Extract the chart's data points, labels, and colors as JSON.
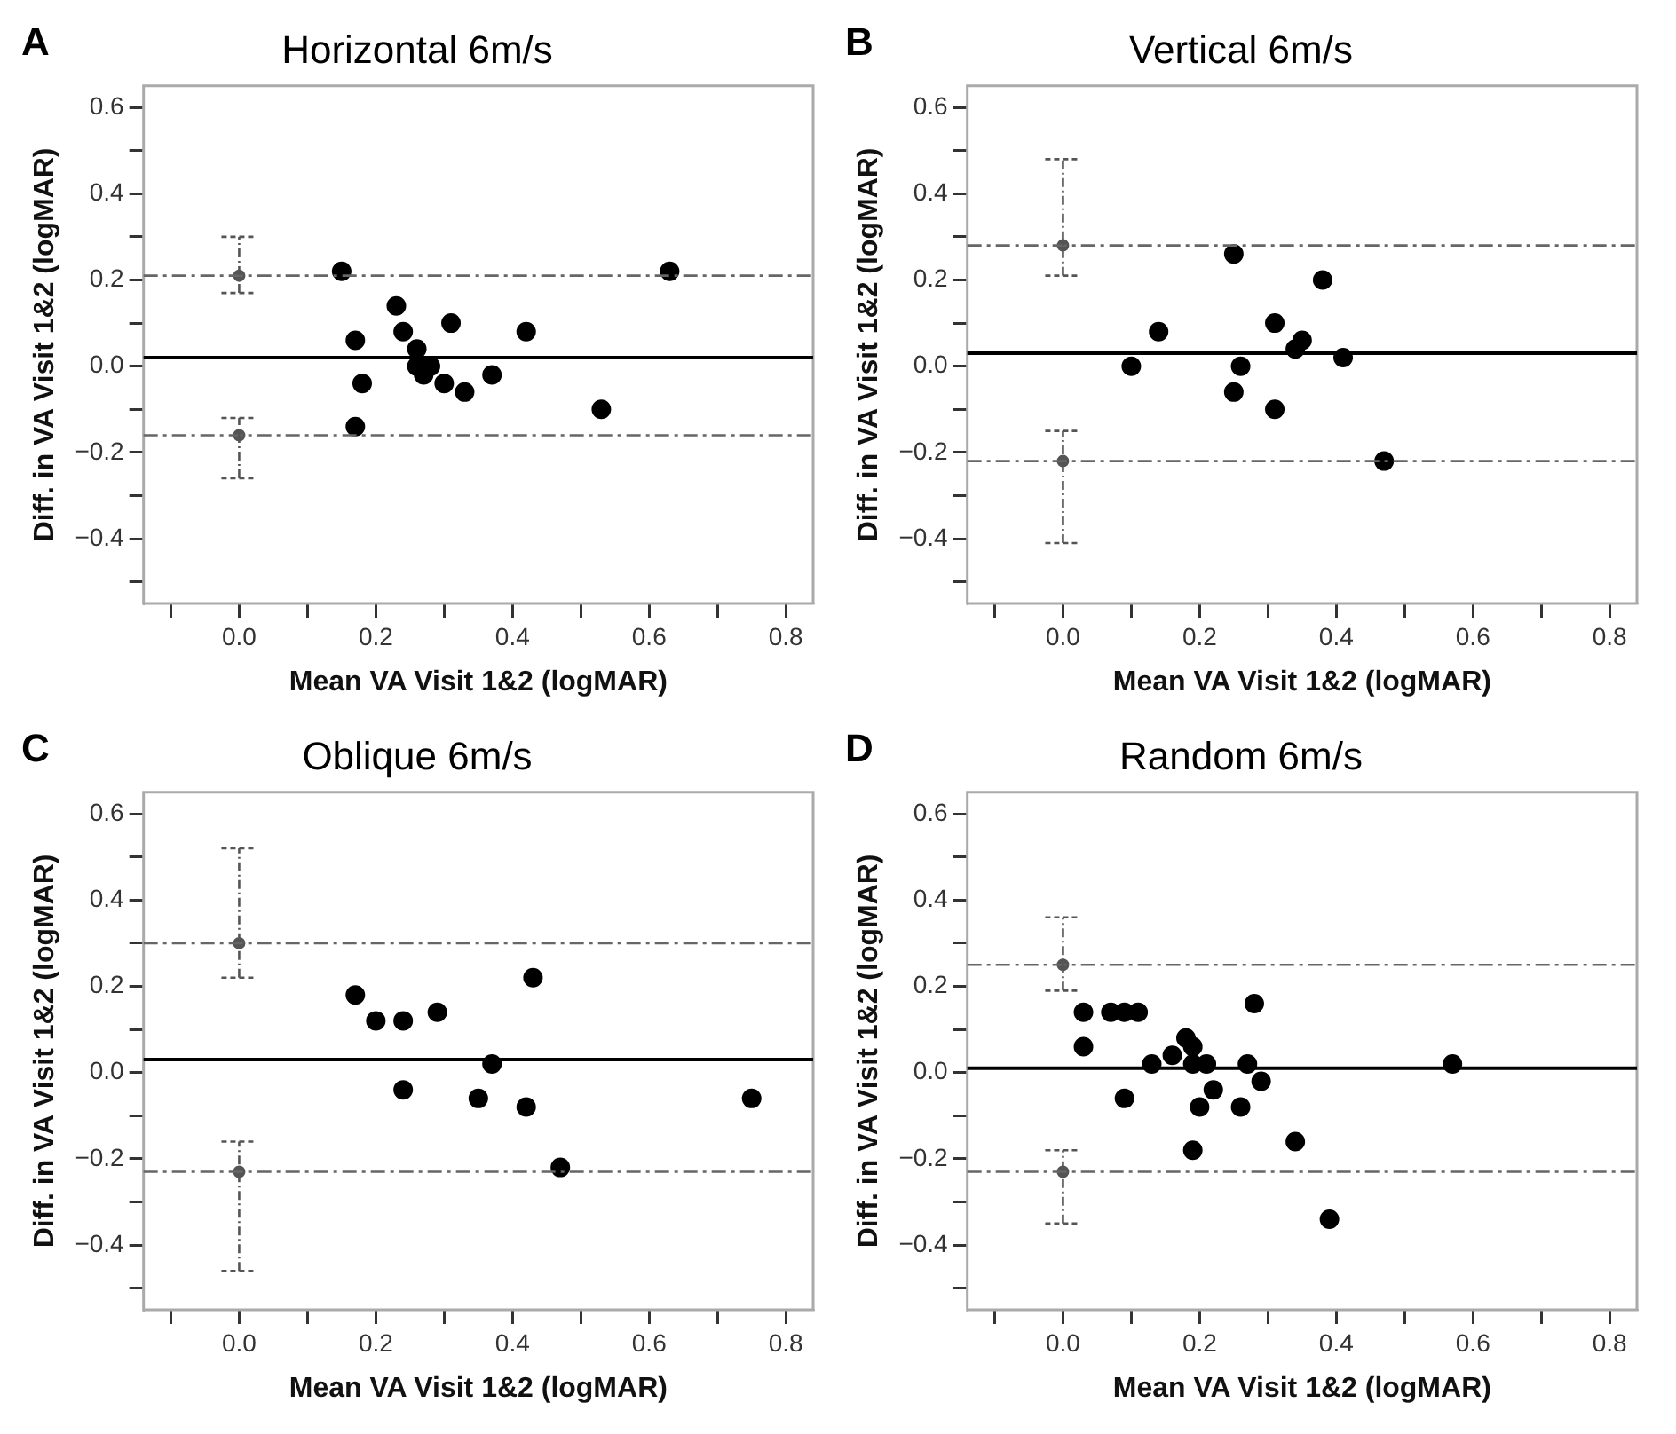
{
  "chart_data": [
    {
      "type": "scatter",
      "title": "Horizontal 6m/s",
      "xlabel": "Mean VA Visit 1&2 (logMAR)",
      "ylabel": "Diff. in VA Visit 1&2 (logMAR)",
      "annotations": [
        "A"
      ],
      "xlim": [
        -0.14,
        0.84
      ],
      "ylim": [
        -0.55,
        0.65
      ],
      "xticks": [
        {
          "value": -0.1,
          "label": null
        },
        {
          "value": 0,
          "label": "0.0"
        },
        {
          "value": 0.1,
          "label": null
        },
        0.2,
        {
          "value": 0.3,
          "label": null
        },
        0.4,
        {
          "value": 0.5,
          "label": null
        },
        0.6,
        {
          "value": 0.7,
          "label": null
        },
        0.8
      ],
      "yticks": [
        {
          "value": -0.5,
          "label": null
        },
        {
          "value": -0.4,
          "label": "−0.4"
        },
        {
          "value": -0.3,
          "label": null
        },
        {
          "value": -0.2,
          "label": "−0.2"
        },
        {
          "value": -0.1,
          "label": null
        },
        {
          "value": 0,
          "label": "0.0"
        },
        {
          "value": 0.1,
          "label": null
        },
        0.2,
        {
          "value": 0.3,
          "label": null
        },
        0.4,
        {
          "value": 0.5,
          "label": null
        },
        0.6
      ],
      "marker": "circle",
      "grid": false,
      "ref_lines": [
        {
          "axis": "y",
          "value": 0.02,
          "color": "#000000",
          "line_style": "solid"
        },
        {
          "axis": "y",
          "value": 0.21,
          "color": "#666666",
          "line_style": "dashed"
        },
        {
          "axis": "y",
          "value": -0.16,
          "color": "#666666",
          "line_style": "dashed"
        }
      ],
      "series": [
        {
          "color": "#000000",
          "x": [
            0.15,
            0.63,
            0.23,
            0.17,
            0.24,
            0.31,
            0.42,
            0.26,
            0.18,
            0.26,
            0.28,
            0.27,
            0.3,
            0.33,
            0.37,
            0.53,
            0.17
          ],
          "values": [
            0.22,
            0.22,
            0.14,
            0.06,
            0.08,
            0.1,
            0.08,
            0.04,
            -0.04,
            0.0,
            0.0,
            -0.02,
            -0.04,
            -0.06,
            -0.02,
            -0.1,
            -0.14
          ]
        },
        {
          "color": "#555555",
          "marker": "circle",
          "x": [
            0,
            0
          ],
          "values": [
            0.21,
            -0.16
          ],
          "errors": [
            [
              0.17,
              0.3
            ],
            [
              -0.26,
              -0.12
            ]
          ]
        }
      ]
    },
    {
      "type": "scatter",
      "title": "Vertical 6m/s",
      "xlabel": "Mean VA Visit 1&2 (logMAR)",
      "ylabel": "Diff. in VA Visit 1&2 (logMAR)",
      "annotations": [
        "B"
      ],
      "xlim": [
        -0.14,
        0.84
      ],
      "ylim": [
        -0.55,
        0.65
      ],
      "xticks": [
        {
          "value": -0.1,
          "label": null
        },
        {
          "value": 0,
          "label": "0.0"
        },
        {
          "value": 0.1,
          "label": null
        },
        0.2,
        {
          "value": 0.3,
          "label": null
        },
        0.4,
        {
          "value": 0.5,
          "label": null
        },
        0.6,
        {
          "value": 0.7,
          "label": null
        },
        0.8
      ],
      "yticks": [
        {
          "value": -0.5,
          "label": null
        },
        {
          "value": -0.4,
          "label": "−0.4"
        },
        {
          "value": -0.3,
          "label": null
        },
        {
          "value": -0.2,
          "label": "−0.2"
        },
        {
          "value": -0.1,
          "label": null
        },
        {
          "value": 0,
          "label": "0.0"
        },
        {
          "value": 0.1,
          "label": null
        },
        0.2,
        {
          "value": 0.3,
          "label": null
        },
        0.4,
        {
          "value": 0.5,
          "label": null
        },
        0.6
      ],
      "marker": "circle",
      "grid": false,
      "ref_lines": [
        {
          "axis": "y",
          "value": 0.03,
          "color": "#000000",
          "line_style": "solid"
        },
        {
          "axis": "y",
          "value": 0.28,
          "color": "#666666",
          "line_style": "dashed"
        },
        {
          "axis": "y",
          "value": -0.22,
          "color": "#666666",
          "line_style": "dashed"
        }
      ],
      "series": [
        {
          "color": "#000000",
          "x": [
            0.1,
            0.14,
            0.25,
            0.38,
            0.31,
            0.35,
            0.34,
            0.41,
            0.26,
            0.25,
            0.31,
            0.47
          ],
          "values": [
            0.0,
            0.08,
            0.26,
            0.2,
            0.1,
            0.06,
            0.04,
            0.02,
            0.0,
            -0.06,
            -0.1,
            -0.22
          ]
        },
        {
          "color": "#555555",
          "marker": "circle",
          "x": [
            0,
            0
          ],
          "values": [
            0.28,
            -0.22
          ],
          "errors": [
            [
              0.21,
              0.48
            ],
            [
              -0.41,
              -0.15
            ]
          ]
        }
      ]
    },
    {
      "type": "scatter",
      "title": "Oblique 6m/s",
      "xlabel": "Mean VA Visit 1&2 (logMAR)",
      "ylabel": "Diff. in VA Visit 1&2 (logMAR)",
      "annotations": [
        "C"
      ],
      "xlim": [
        -0.14,
        0.84
      ],
      "ylim": [
        -0.55,
        0.65
      ],
      "xticks": [
        {
          "value": -0.1,
          "label": null
        },
        {
          "value": 0,
          "label": "0.0"
        },
        {
          "value": 0.1,
          "label": null
        },
        0.2,
        {
          "value": 0.3,
          "label": null
        },
        0.4,
        {
          "value": 0.5,
          "label": null
        },
        0.6,
        {
          "value": 0.7,
          "label": null
        },
        0.8
      ],
      "yticks": [
        {
          "value": -0.5,
          "label": null
        },
        {
          "value": -0.4,
          "label": "−0.4"
        },
        {
          "value": -0.3,
          "label": null
        },
        {
          "value": -0.2,
          "label": "−0.2"
        },
        {
          "value": -0.1,
          "label": null
        },
        {
          "value": 0,
          "label": "0.0"
        },
        {
          "value": 0.1,
          "label": null
        },
        0.2,
        {
          "value": 0.3,
          "label": null
        },
        0.4,
        {
          "value": 0.5,
          "label": null
        },
        0.6
      ],
      "marker": "circle",
      "grid": false,
      "ref_lines": [
        {
          "axis": "y",
          "value": 0.03,
          "color": "#000000",
          "line_style": "solid"
        },
        {
          "axis": "y",
          "value": 0.3,
          "color": "#666666",
          "line_style": "dashed"
        },
        {
          "axis": "y",
          "value": -0.23,
          "color": "#666666",
          "line_style": "dashed"
        }
      ],
      "series": [
        {
          "color": "#000000",
          "x": [
            0.17,
            0.2,
            0.24,
            0.29,
            0.43,
            0.37,
            0.24,
            0.35,
            0.42,
            0.75,
            0.47
          ],
          "values": [
            0.18,
            0.12,
            0.12,
            0.14,
            0.22,
            0.02,
            -0.04,
            -0.06,
            -0.08,
            -0.06,
            -0.22
          ]
        },
        {
          "color": "#555555",
          "marker": "circle",
          "x": [
            0,
            0
          ],
          "values": [
            0.3,
            -0.23
          ],
          "errors": [
            [
              0.22,
              0.52
            ],
            [
              -0.46,
              -0.16
            ]
          ]
        }
      ]
    },
    {
      "type": "scatter",
      "title": "Random 6m/s",
      "xlabel": "Mean VA Visit 1&2 (logMAR)",
      "ylabel": "Diff. in VA Visit 1&2 (logMAR)",
      "annotations": [
        "D"
      ],
      "xlim": [
        -0.14,
        0.84
      ],
      "ylim": [
        -0.55,
        0.65
      ],
      "xticks": [
        {
          "value": -0.1,
          "label": null
        },
        {
          "value": 0,
          "label": "0.0"
        },
        {
          "value": 0.1,
          "label": null
        },
        0.2,
        {
          "value": 0.3,
          "label": null
        },
        0.4,
        {
          "value": 0.5,
          "label": null
        },
        0.6,
        {
          "value": 0.7,
          "label": null
        },
        0.8
      ],
      "yticks": [
        {
          "value": -0.5,
          "label": null
        },
        {
          "value": -0.4,
          "label": "−0.4"
        },
        {
          "value": -0.3,
          "label": null
        },
        {
          "value": -0.2,
          "label": "−0.2"
        },
        {
          "value": -0.1,
          "label": null
        },
        {
          "value": 0,
          "label": "0.0"
        },
        {
          "value": 0.1,
          "label": null
        },
        0.2,
        {
          "value": 0.3,
          "label": null
        },
        0.4,
        {
          "value": 0.5,
          "label": null
        },
        0.6
      ],
      "marker": "circle",
      "grid": false,
      "ref_lines": [
        {
          "axis": "y",
          "value": 0.01,
          "color": "#000000",
          "line_style": "solid"
        },
        {
          "axis": "y",
          "value": 0.25,
          "color": "#666666",
          "line_style": "dashed"
        },
        {
          "axis": "y",
          "value": -0.23,
          "color": "#666666",
          "line_style": "dashed"
        }
      ],
      "series": [
        {
          "color": "#000000",
          "x": [
            0.03,
            0.03,
            0.07,
            0.09,
            0.11,
            0.09,
            0.13,
            0.16,
            0.18,
            0.19,
            0.19,
            0.21,
            0.22,
            0.2,
            0.19,
            0.26,
            0.27,
            0.28,
            0.29,
            0.34,
            0.39,
            0.57
          ],
          "values": [
            0.14,
            0.06,
            0.14,
            0.14,
            0.14,
            -0.06,
            0.02,
            0.04,
            0.08,
            0.06,
            0.02,
            0.02,
            -0.04,
            -0.08,
            -0.18,
            -0.08,
            0.02,
            0.16,
            -0.02,
            -0.16,
            -0.34,
            0.02
          ]
        },
        {
          "color": "#555555",
          "marker": "circle",
          "x": [
            0,
            0
          ],
          "values": [
            0.25,
            -0.23
          ],
          "errors": [
            [
              0.19,
              0.36
            ],
            [
              -0.35,
              -0.18
            ]
          ]
        }
      ]
    }
  ]
}
